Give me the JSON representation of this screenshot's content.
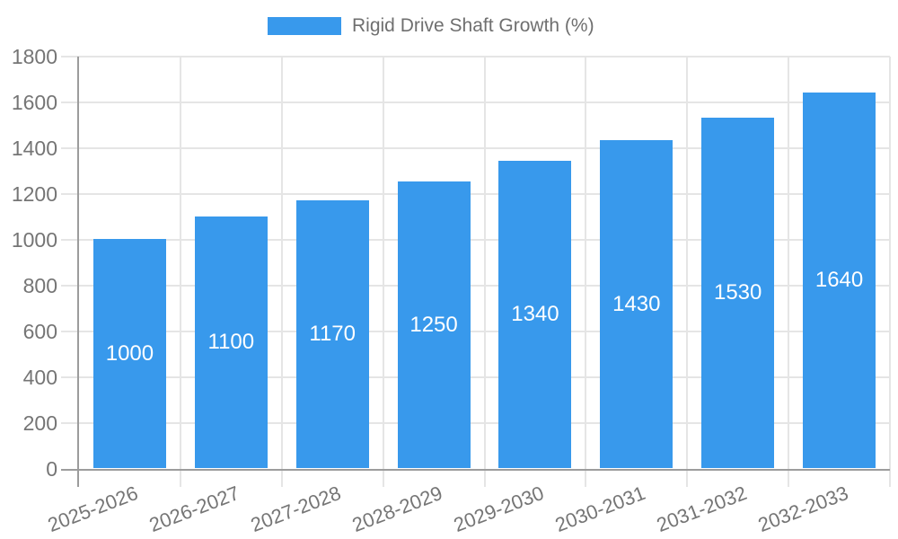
{
  "legend": {
    "label": "Rigid Drive Shaft Growth (%)"
  },
  "chart_data": {
    "type": "bar",
    "title": "",
    "xlabel": "",
    "ylabel": "",
    "categories": [
      "2025-2026",
      "2026-2027",
      "2027-2028",
      "2028-2029",
      "2029-2030",
      "2030-2031",
      "2031-2032",
      "2032-2033"
    ],
    "series": [
      {
        "name": "Rigid Drive Shaft Growth (%)",
        "values": [
          1000,
          1100,
          1170,
          1250,
          1340,
          1430,
          1530,
          1640
        ]
      }
    ],
    "value_labels_shown": true,
    "ylim": [
      0,
      1800
    ],
    "y_step": 200,
    "y_ticks": [
      0,
      200,
      400,
      600,
      800,
      1000,
      1200,
      1400,
      1600,
      1800
    ],
    "grid": true,
    "legend_position": "top",
    "x_label_rotation_deg": -21,
    "colors": {
      "bar_fill": "#3899EC",
      "bar_value_label": "#FFFFFF",
      "axis_line": "#9C9C9C",
      "grid_line": "#E5E5E5",
      "tick_text": "#757575",
      "legend_text": "#6F6F6F"
    }
  }
}
